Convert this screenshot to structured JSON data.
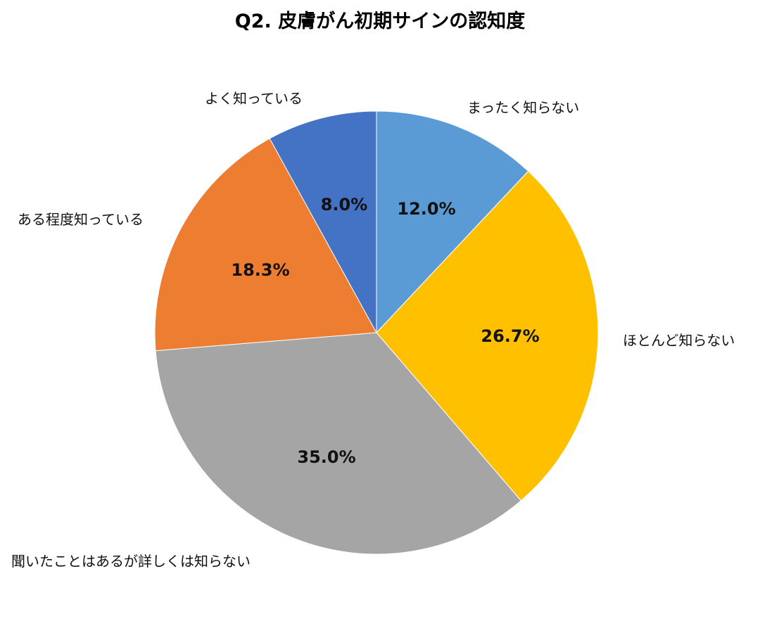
{
  "chart_data": {
    "type": "pie",
    "title": "Q2. 皮膚がん初期サインの認知度",
    "start_angle": "12 o'clock, clockwise",
    "slices": [
      {
        "label": "まったく知らない",
        "value": 12.0,
        "display": "12.0%",
        "color": "#5B9BD5"
      },
      {
        "label": "ほとんど知らない",
        "value": 26.7,
        "display": "26.7%",
        "color": "#FFC000"
      },
      {
        "label": "聞いたことはあるが詳しくは知らない",
        "value": 35.0,
        "display": "35.0%",
        "color": "#A5A5A5"
      },
      {
        "label": "ある程度知っている",
        "value": 18.3,
        "display": "18.3%",
        "color": "#ED7D31"
      },
      {
        "label": "よく知っている",
        "value": 8.0,
        "display": "8.0%",
        "color": "#4472C4"
      }
    ],
    "legend": "none (category labels placed outside slices)"
  }
}
